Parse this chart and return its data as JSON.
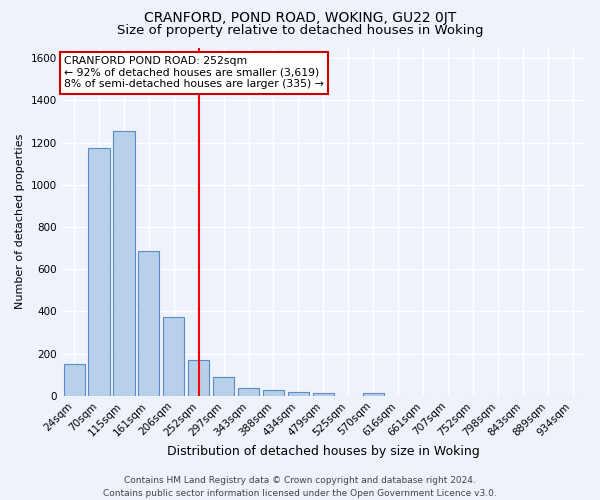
{
  "title": "CRANFORD, POND ROAD, WOKING, GU22 0JT",
  "subtitle": "Size of property relative to detached houses in Woking",
  "xlabel": "Distribution of detached houses by size in Woking",
  "ylabel": "Number of detached properties",
  "categories": [
    "24sqm",
    "70sqm",
    "115sqm",
    "161sqm",
    "206sqm",
    "252sqm",
    "297sqm",
    "343sqm",
    "388sqm",
    "434sqm",
    "479sqm",
    "525sqm",
    "570sqm",
    "616sqm",
    "661sqm",
    "707sqm",
    "752sqm",
    "798sqm",
    "843sqm",
    "889sqm",
    "934sqm"
  ],
  "values": [
    150,
    1175,
    1255,
    685,
    375,
    170,
    90,
    38,
    28,
    18,
    15,
    0,
    14,
    0,
    0,
    0,
    0,
    0,
    0,
    0,
    0
  ],
  "bar_color": "#b8d0ea",
  "bar_edge_color": "#5b8cc8",
  "background_color": "#eef2fb",
  "grid_color": "#ffffff",
  "red_line_index": 5,
  "annotation_title": "CRANFORD POND ROAD: 252sqm",
  "annotation_line2": "← 92% of detached houses are smaller (3,619)",
  "annotation_line3": "8% of semi-detached houses are larger (335) →",
  "annotation_box_color": "#ffffff",
  "annotation_box_edge": "#cc0000",
  "footer": "Contains HM Land Registry data © Crown copyright and database right 2024.\nContains public sector information licensed under the Open Government Licence v3.0.",
  "ylim": [
    0,
    1650
  ],
  "yticks": [
    0,
    200,
    400,
    600,
    800,
    1000,
    1200,
    1400,
    1600
  ],
  "title_fontsize": 10,
  "subtitle_fontsize": 9.5,
  "xlabel_fontsize": 9,
  "ylabel_fontsize": 8,
  "tick_fontsize": 7.5,
  "footer_fontsize": 6.5,
  "annotation_fontsize": 7.8
}
